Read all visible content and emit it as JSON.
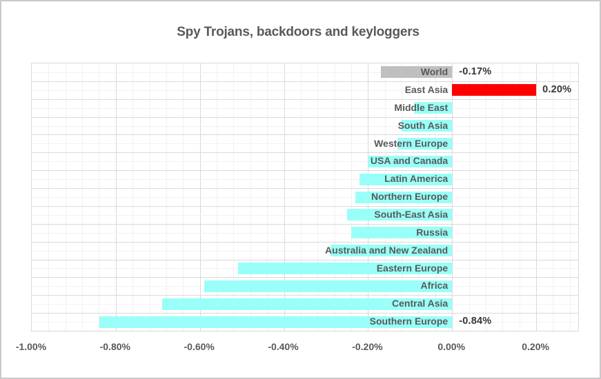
{
  "chart_data": {
    "type": "bar",
    "orientation": "horizontal",
    "title": "Spy Trojans, backdoors and keyloggers",
    "unit": "%",
    "categories": [
      "World",
      "East Asia",
      "Middle East",
      "South Asia",
      "Western Europe",
      "USA and Canada",
      "Latin America",
      "Northern Europe",
      "South-East Asia",
      "Russia",
      "Australia and New Zealand",
      "Eastern Europe",
      "Africa",
      "Central Asia",
      "Southern Europe"
    ],
    "values": [
      -0.17,
      0.2,
      -0.09,
      -0.12,
      -0.13,
      -0.2,
      -0.22,
      -0.23,
      -0.25,
      -0.24,
      -0.29,
      -0.51,
      -0.59,
      -0.69,
      -0.84
    ],
    "point_colors": [
      "#bfbfbf",
      "#ff0000",
      "#99fff8",
      "#99fff8",
      "#99fff8",
      "#99fff8",
      "#99fff8",
      "#99fff8",
      "#99fff8",
      "#99fff8",
      "#99fff8",
      "#99fff8",
      "#99fff8",
      "#99fff8",
      "#99fff8"
    ],
    "point_labels": [
      "-0.17%",
      "0.20%",
      null,
      null,
      null,
      null,
      null,
      null,
      null,
      null,
      null,
      null,
      null,
      null,
      "-0.84%"
    ],
    "xlim": [
      -1.0,
      0.3
    ],
    "x_major_step": 0.2,
    "x_minor_step": 0.04,
    "x_tick_labels": [
      {
        "value": -1.0,
        "label": "-1.00%"
      },
      {
        "value": -0.8,
        "label": "-0.80%"
      },
      {
        "value": -0.6,
        "label": "-0.60%"
      },
      {
        "value": -0.4,
        "label": "-0.40%"
      },
      {
        "value": -0.2,
        "label": "-0.20%"
      },
      {
        "value": 0.0,
        "label": "0.00%"
      },
      {
        "value": 0.2,
        "label": "0.20%"
      }
    ],
    "grid": "major+minor, both axes",
    "legend": "none"
  },
  "colors": {
    "background": "#ffffff",
    "chart_border": "#cbc9c9",
    "grid_major": "#d9d9d9",
    "grid_minor": "#f1f1f1",
    "bar_default": "#99fff8",
    "bar_highlight": "#ff0000",
    "bar_world": "#bfbfbf",
    "label_text": "#595959",
    "data_label_text": "#363636"
  }
}
